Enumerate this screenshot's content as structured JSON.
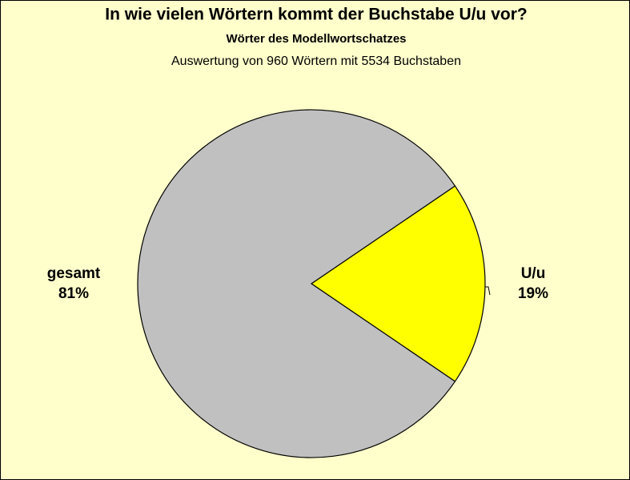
{
  "chart_data": {
    "type": "pie",
    "title": "In wie vielen Wörtern kommt der Buchstabe U/u vor?",
    "subtitle": "Wörter des Modellwortschatzes",
    "caption": "Auswertung von 960 Wörtern mit 5534 Buchstaben",
    "categories": [
      "U/u",
      "gesamt"
    ],
    "values": [
      19,
      81
    ],
    "value_labels": [
      "19%",
      "81%"
    ],
    "colors": [
      "#ffff00",
      "#c0c0c0"
    ]
  }
}
